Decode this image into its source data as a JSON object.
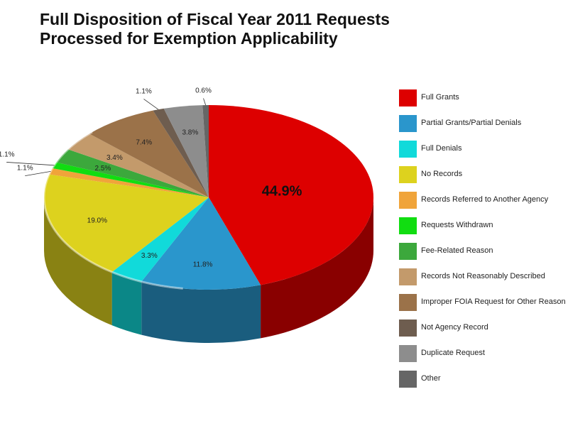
{
  "title": {
    "line1": "Full Disposition of Fiscal Year 2011 Requests",
    "line2": "Processed for Exemption Applicability"
  },
  "chart_data": {
    "type": "pie",
    "style": "3d",
    "legend_position": "right",
    "categories": [
      "Full Grants",
      "Partial Grants/Partial Denials",
      "Full Denials",
      "No Records",
      "Records Referred to Another Agency",
      "Requests Withdrawn",
      "Fee-Related Reason",
      "Records Not Reasonably Described",
      "Improper FOIA Request for Other Reason",
      "Not Agency Record",
      "Duplicate Request",
      "Other"
    ],
    "values": [
      44.9,
      11.8,
      3.3,
      19.0,
      1.1,
      1.1,
      2.5,
      3.4,
      7.4,
      1.1,
      3.8,
      0.6
    ],
    "labels": [
      "44.9%",
      "11.8%",
      "3.3%",
      "19.0%",
      "1.1%",
      "1.1%",
      "2.5%",
      "3.4%",
      "7.4%",
      "1.1%",
      "3.8%",
      "0.6%"
    ],
    "colors": [
      "#dd0000",
      "#2a96cc",
      "#11dada",
      "#ddd21e",
      "#f0a43a",
      "#11dd11",
      "#3ca83c",
      "#c39a6b",
      "#9b7249",
      "#6e5d4f",
      "#8d8d8d",
      "#666666"
    ]
  }
}
